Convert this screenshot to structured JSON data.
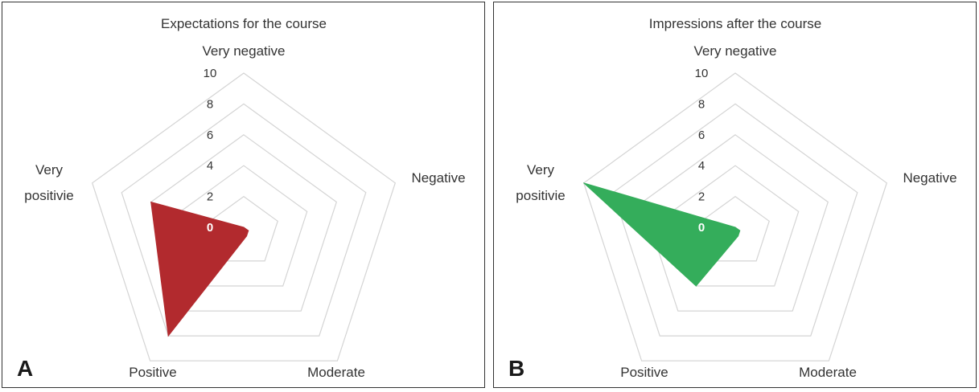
{
  "chart_data": [
    {
      "type": "radar",
      "panel_label": "A",
      "title": "Expectations for the course",
      "axes": [
        "Very negative",
        "Negative",
        "Moderate",
        "Positive",
        "Very positivie"
      ],
      "values": [
        0,
        0,
        0,
        8,
        6
      ],
      "rmin": 0,
      "rmax": 10,
      "ticks": [
        0,
        2,
        4,
        6,
        8,
        10
      ],
      "color": "#b22a2e"
    },
    {
      "type": "radar",
      "panel_label": "B",
      "title": "Impressions after the course",
      "axes": [
        "Very negative",
        "Negative",
        "Moderate",
        "Positive",
        "Very positivie"
      ],
      "values": [
        0,
        0,
        0,
        4,
        10
      ],
      "rmin": 0,
      "rmax": 10,
      "ticks": [
        0,
        2,
        4,
        6,
        8,
        10
      ],
      "color": "#34ad5b"
    }
  ]
}
